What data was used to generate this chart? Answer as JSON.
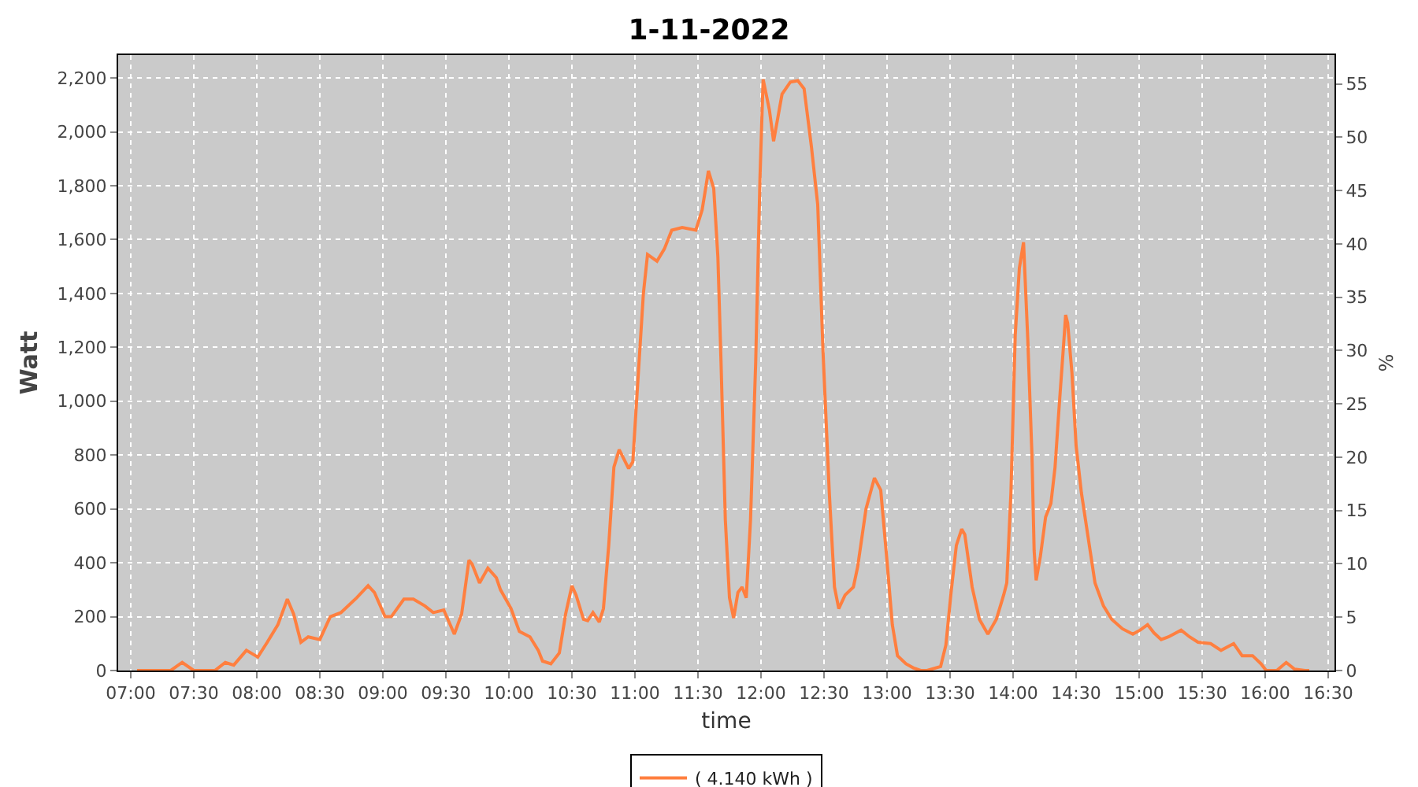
{
  "chart_data": {
    "type": "line",
    "title": "1-11-2022",
    "xlabel": "time",
    "ylabel": "Watt",
    "y2label": "%",
    "x": [
      7.05,
      7.317,
      7.408,
      7.5,
      7.667,
      7.75,
      7.817,
      7.917,
      8.008,
      8.083,
      8.167,
      8.242,
      8.292,
      8.35,
      8.408,
      8.5,
      8.583,
      8.667,
      8.792,
      8.883,
      8.933,
      9.017,
      9.067,
      9.167,
      9.242,
      9.333,
      9.4,
      9.483,
      9.567,
      9.625,
      9.683,
      9.708,
      9.767,
      9.833,
      9.9,
      9.933,
      10.017,
      10.083,
      10.167,
      10.233,
      10.267,
      10.333,
      10.4,
      10.45,
      10.5,
      10.533,
      10.592,
      10.625,
      10.667,
      10.717,
      10.75,
      10.792,
      10.833,
      10.875,
      10.95,
      10.983,
      11.017,
      11.067,
      11.1,
      11.175,
      11.233,
      11.292,
      11.375,
      11.483,
      11.533,
      11.583,
      11.625,
      11.658,
      11.683,
      11.717,
      11.75,
      11.783,
      11.817,
      11.85,
      11.883,
      11.917,
      11.958,
      11.992,
      12.017,
      12.067,
      12.1,
      12.167,
      12.233,
      12.292,
      12.342,
      12.4,
      12.45,
      12.492,
      12.542,
      12.583,
      12.617,
      12.667,
      12.733,
      12.767,
      12.833,
      12.9,
      12.95,
      13.0,
      13.042,
      13.083,
      13.15,
      13.208,
      13.267,
      13.317,
      13.425,
      13.467,
      13.508,
      13.55,
      13.592,
      13.617,
      13.675,
      13.733,
      13.8,
      13.867,
      13.925,
      13.95,
      13.983,
      14.017,
      14.05,
      14.083,
      14.117,
      14.15,
      14.167,
      14.183,
      14.217,
      14.258,
      14.3,
      14.333,
      14.367,
      14.4,
      14.417,
      14.433,
      14.467,
      14.5,
      14.542,
      14.592,
      14.65,
      14.717,
      14.783,
      14.867,
      14.95,
      15.008,
      15.067,
      15.117,
      15.175,
      15.233,
      15.333,
      15.4,
      15.467,
      15.567,
      15.65,
      15.75,
      15.817,
      15.9,
      15.967,
      16.008,
      16.092,
      16.167,
      16.233,
      16.317,
      16.35
    ],
    "series": [
      {
        "name": "( 4.140 kWh )",
        "color": "#ff7f3f",
        "values": [
          0,
          0,
          30,
          0,
          0,
          30,
          20,
          75,
          50,
          105,
          170,
          265,
          210,
          105,
          125,
          115,
          200,
          215,
          270,
          315,
          290,
          200,
          200,
          265,
          265,
          240,
          215,
          225,
          135,
          210,
          410,
          395,
          325,
          380,
          345,
          300,
          230,
          145,
          125,
          75,
          35,
          25,
          65,
          210,
          315,
          280,
          190,
          185,
          215,
          180,
          230,
          465,
          755,
          820,
          750,
          775,
          1030,
          1400,
          1545,
          1520,
          1565,
          1635,
          1645,
          1635,
          1710,
          1855,
          1790,
          1535,
          1145,
          560,
          270,
          195,
          290,
          310,
          270,
          560,
          1145,
          1830,
          2195,
          2080,
          1965,
          2140,
          2185,
          2190,
          2160,
          1945,
          1730,
          1185,
          660,
          310,
          230,
          280,
          310,
          385,
          600,
          715,
          670,
          405,
          170,
          55,
          25,
          10,
          0,
          0,
          15,
          95,
          290,
          465,
          525,
          505,
          310,
          190,
          135,
          190,
          280,
          325,
          660,
          1245,
          1495,
          1590,
          1225,
          795,
          445,
          335,
          425,
          570,
          620,
          755,
          990,
          1205,
          1320,
          1290,
          1105,
          835,
          660,
          505,
          325,
          240,
          190,
          155,
          135,
          150,
          170,
          140,
          115,
          125,
          150,
          125,
          105,
          100,
          75,
          100,
          55,
          55,
          25,
          0,
          0,
          30,
          5,
          0,
          0
        ]
      }
    ],
    "xlim": [
      6.9,
      16.55
    ],
    "xticks": [
      {
        "value": 7,
        "label": "07:00"
      },
      {
        "value": 7.5,
        "label": "07:30"
      },
      {
        "value": 8,
        "label": "08:00"
      },
      {
        "value": 8.5,
        "label": "08:30"
      },
      {
        "value": 9,
        "label": "09:00"
      },
      {
        "value": 9.5,
        "label": "09:30"
      },
      {
        "value": 10,
        "label": "10:00"
      },
      {
        "value": 10.5,
        "label": "10:30"
      },
      {
        "value": 11,
        "label": "11:00"
      },
      {
        "value": 11.5,
        "label": "11:30"
      },
      {
        "value": 12,
        "label": "12:00"
      },
      {
        "value": 12.5,
        "label": "12:30"
      },
      {
        "value": 13,
        "label": "13:00"
      },
      {
        "value": 13.5,
        "label": "13:30"
      },
      {
        "value": 14,
        "label": "14:00"
      },
      {
        "value": 14.5,
        "label": "14:30"
      },
      {
        "value": 15,
        "label": "15:00"
      },
      {
        "value": 15.5,
        "label": "15:30"
      },
      {
        "value": 16,
        "label": "16:00"
      },
      {
        "value": 16.5,
        "label": "16:30"
      }
    ],
    "ylim": [
      0,
      2285
    ],
    "yticks": [
      0,
      200,
      400,
      600,
      800,
      {
        "value": 1000,
        "label": "1,000"
      },
      {
        "value": 1200,
        "label": "1,200"
      },
      {
        "value": 1400,
        "label": "1,400"
      },
      {
        "value": 1600,
        "label": "1,600"
      },
      {
        "value": 1800,
        "label": "1,800"
      },
      {
        "value": 2000,
        "label": "2,000"
      },
      {
        "value": 2200,
        "label": "2,200"
      }
    ],
    "y2lim": [
      0,
      57.7
    ],
    "y2ticks": [
      0,
      5,
      10,
      15,
      20,
      25,
      30,
      35,
      40,
      45,
      50,
      55
    ],
    "grid": true,
    "legend": "bottom",
    "marker": "none",
    "line_style": "solid"
  }
}
